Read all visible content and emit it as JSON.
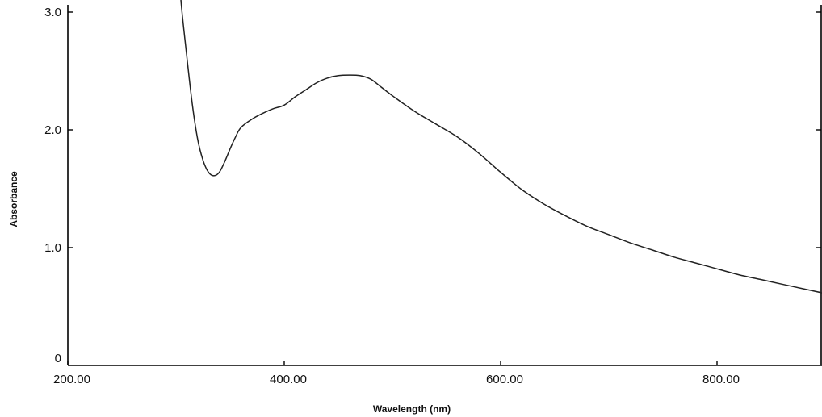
{
  "chart_data": {
    "type": "line",
    "title": "",
    "xlabel": "Wavelength (nm)",
    "ylabel": "Absorbance",
    "xlim": [
      200,
      900
    ],
    "ylim": [
      0,
      3.4
    ],
    "x_ticks": [
      {
        "value": 200,
        "label": "200.00"
      },
      {
        "value": 400,
        "label": "400.00"
      },
      {
        "value": 600,
        "label": "600.00"
      },
      {
        "value": 800,
        "label": "800.00"
      }
    ],
    "y_ticks": [
      {
        "value": 0,
        "label": "0"
      },
      {
        "value": 1,
        "label": "1.0"
      },
      {
        "value": 2,
        "label": "2.0"
      },
      {
        "value": 3,
        "label": "3.0"
      }
    ],
    "grid": false,
    "legend": "none",
    "series": [
      {
        "x": [
          303,
          305,
          310,
          315,
          320,
          325,
          330,
          335,
          340,
          345,
          350,
          355,
          360,
          370,
          380,
          390,
          400,
          410,
          420,
          430,
          440,
          450,
          460,
          470,
          480,
          490,
          500,
          520,
          540,
          560,
          580,
          600,
          620,
          640,
          660,
          680,
          700,
          720,
          740,
          760,
          780,
          800,
          820,
          840,
          860,
          880,
          900
        ],
        "y": [
          3.33,
          3.05,
          2.62,
          2.22,
          1.92,
          1.74,
          1.64,
          1.61,
          1.64,
          1.73,
          1.84,
          1.94,
          2.02,
          2.09,
          2.14,
          2.18,
          2.21,
          2.28,
          2.34,
          2.4,
          2.44,
          2.46,
          2.465,
          2.46,
          2.43,
          2.36,
          2.29,
          2.16,
          2.05,
          1.94,
          1.8,
          1.64,
          1.49,
          1.37,
          1.27,
          1.18,
          1.11,
          1.04,
          0.98,
          0.92,
          0.87,
          0.82,
          0.77,
          0.73,
          0.69,
          0.65,
          0.61
        ],
        "color": "#222222"
      }
    ]
  }
}
